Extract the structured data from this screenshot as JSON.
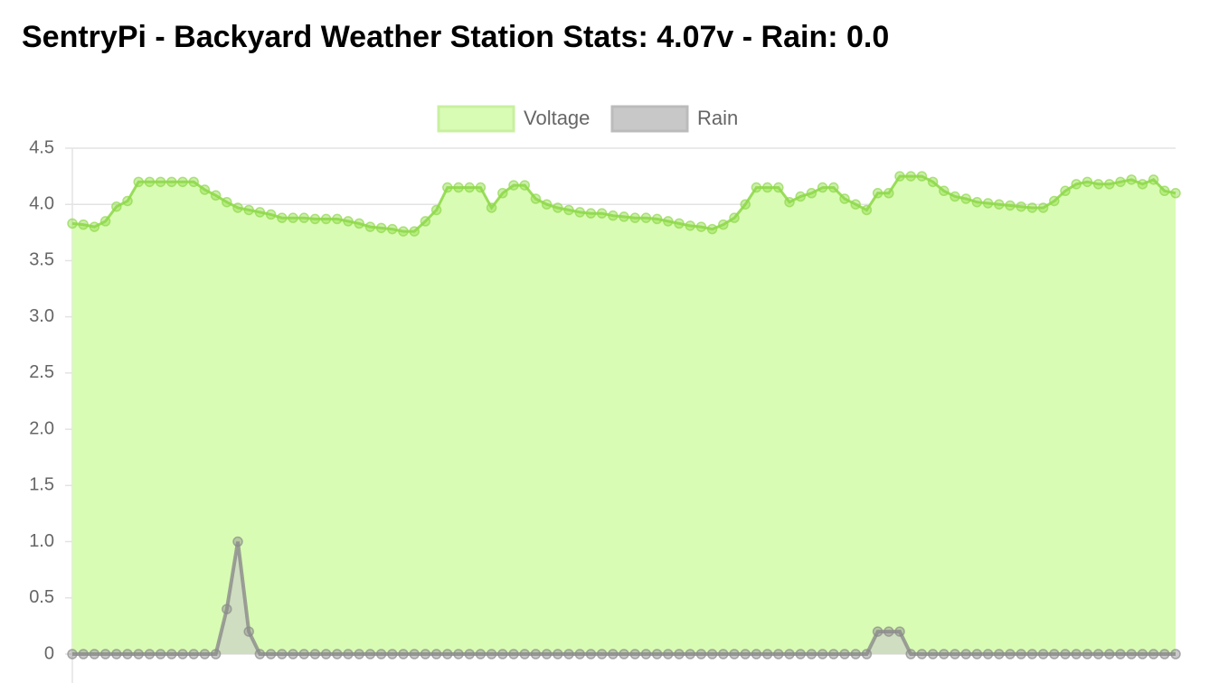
{
  "chart_data": {
    "type": "line",
    "title": "SentryPi - Backyard Weather Station Stats: 4.07v - Rain: 0.0",
    "legend": "top",
    "grid": true,
    "ylim": [
      0,
      4.5
    ],
    "yticks": [
      0,
      0.5,
      {
        "value": 1,
        "label": "1.0"
      },
      1.5,
      {
        "value": 2,
        "label": "2.0"
      },
      2.5,
      {
        "value": 3,
        "label": "3.0"
      },
      3.5,
      {
        "value": 4,
        "label": "4.0"
      },
      4.5
    ],
    "series": [
      {
        "name": "Voltage",
        "color": "#8fd94a",
        "fill": "#d9fcb4",
        "values": [
          3.83,
          3.82,
          3.8,
          3.85,
          3.98,
          4.03,
          4.2,
          4.2,
          4.2,
          4.2,
          4.2,
          4.2,
          4.13,
          4.08,
          4.02,
          3.97,
          3.95,
          3.93,
          3.91,
          3.88,
          3.88,
          3.88,
          3.87,
          3.87,
          3.87,
          3.85,
          3.83,
          3.8,
          3.79,
          3.78,
          3.76,
          3.76,
          3.85,
          3.95,
          4.15,
          4.15,
          4.15,
          4.15,
          3.97,
          4.1,
          4.17,
          4.17,
          4.05,
          4.0,
          3.97,
          3.95,
          3.93,
          3.92,
          3.92,
          3.9,
          3.89,
          3.88,
          3.88,
          3.87,
          3.85,
          3.83,
          3.81,
          3.8,
          3.78,
          3.82,
          3.88,
          4.0,
          4.15,
          4.15,
          4.15,
          4.02,
          4.07,
          4.1,
          4.15,
          4.15,
          4.05,
          4.0,
          3.95,
          4.1,
          4.1,
          4.25,
          4.25,
          4.25,
          4.2,
          4.12,
          4.07,
          4.05,
          4.02,
          4.01,
          4.0,
          3.99,
          3.98,
          3.97,
          3.97,
          4.03,
          4.12,
          4.18,
          4.2,
          4.18,
          4.18,
          4.2,
          4.22,
          4.18,
          4.22,
          4.12,
          4.1
        ]
      },
      {
        "name": "Rain",
        "color": "#8a8a8a",
        "fill": "#c8c8c8",
        "values": [
          0,
          0,
          0,
          0,
          0,
          0,
          0,
          0,
          0,
          0,
          0,
          0,
          0,
          0,
          0.4,
          1,
          0.2,
          0,
          0,
          0,
          0,
          0,
          0,
          0,
          0,
          0,
          0,
          0,
          0,
          0,
          0,
          0,
          0,
          0,
          0,
          0,
          0,
          0,
          0,
          0,
          0,
          0,
          0,
          0,
          0,
          0,
          0,
          0,
          0,
          0,
          0,
          0,
          0,
          0,
          0,
          0,
          0,
          0,
          0,
          0,
          0,
          0,
          0,
          0,
          0,
          0,
          0,
          0,
          0,
          0,
          0,
          0,
          0,
          0.2,
          0.2,
          0.2,
          0,
          0,
          0,
          0,
          0,
          0,
          0,
          0,
          0,
          0,
          0,
          0,
          0,
          0,
          0,
          0,
          0,
          0,
          0,
          0,
          0,
          0,
          0,
          0,
          0
        ]
      }
    ]
  }
}
